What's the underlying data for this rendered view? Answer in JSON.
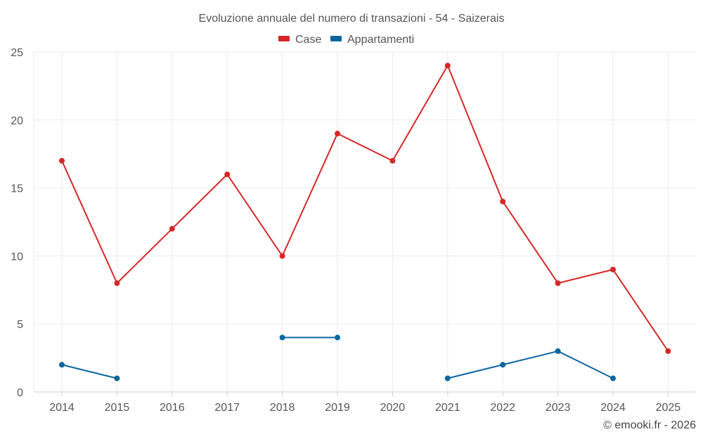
{
  "chart_data": {
    "type": "line",
    "title": "Evoluzione annuale del numero di transazioni - 54 - Saizerais",
    "categories": [
      "2014",
      "2015",
      "2016",
      "2017",
      "2018",
      "2019",
      "2020",
      "2021",
      "2022",
      "2023",
      "2024",
      "2025"
    ],
    "series": [
      {
        "name": "Case",
        "color": "#d62728",
        "values": [
          17,
          8,
          12,
          16,
          10,
          19,
          17,
          24,
          14,
          8,
          9,
          3
        ]
      },
      {
        "name": "Appartamenti",
        "color": "#0b66a0",
        "values": [
          2,
          1,
          null,
          null,
          4,
          4,
          null,
          1,
          2,
          3,
          1,
          null
        ]
      }
    ],
    "ylim": [
      0,
      25
    ],
    "yticks": [
      0,
      5,
      10,
      15,
      20,
      25
    ],
    "grid": true,
    "legend": "top-center",
    "xlabel": "",
    "ylabel": ""
  },
  "footer": "© emooki.fr - 2026"
}
